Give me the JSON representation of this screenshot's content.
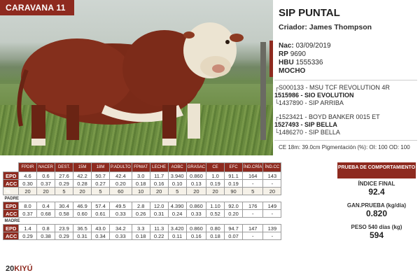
{
  "badge": "CARAVANA 11",
  "animal": {
    "name": "SIP PUNTAL",
    "breeder": "Criador: James Thompson",
    "nac_label": "Nac:",
    "nac_value": "03/09/2019",
    "rp_label": "RP",
    "rp_value": "9690",
    "hbu_label": "HBU",
    "hbu_value": "1555336",
    "type": "MOCHO"
  },
  "pedigree": {
    "sire_sire": "S000133 - MSU TCF REVOLUTION 4R",
    "sire": "1515986 - SIO EVOLUTION",
    "sire_dam": "1437890 - SIP ARRIBA",
    "dam_sire": "1523421 - BOYD BANKER 0015 ET",
    "dam": "1527493 - SIP BELLA",
    "dam_dam": "1486270 - SIP BELLA"
  },
  "ce_line": "CE 18m: 39.0cm Pigmentación (%): OI: 100 OD: 100",
  "table": {
    "headers": [
      "FPDIR",
      "NACER",
      "DEST.",
      "15M",
      "18M",
      "P.ADULTO",
      "FPMAT",
      "LECHE",
      "AOBC",
      "GRASAC",
      "CE",
      "EFC",
      "ÍND.CRÍA",
      "ÍND.CC"
    ],
    "animal": {
      "epd": [
        "4.6",
        "0.6",
        "27.6",
        "42.2",
        "50.7",
        "42.4",
        "3.0",
        "11.7",
        "3.940",
        "0.860",
        "1.0",
        "91.1",
        "164",
        "143"
      ],
      "acc": [
        "0.30",
        "0.37",
        "0.29",
        "0.28",
        "0.27",
        "0.20",
        "0.18",
        "0.16",
        "0.10",
        "0.13",
        "0.19",
        "0.19",
        "-",
        "-"
      ],
      "pct": [
        "20",
        "20",
        "5",
        "20",
        "5",
        "60",
        "10",
        "20",
        "5",
        "20",
        "20",
        "90",
        "5",
        "20"
      ]
    },
    "padre_label": "PADRE",
    "padre": {
      "epd": [
        "8.0",
        "0.4",
        "30.4",
        "46.9",
        "57.4",
        "49.5",
        "2.8",
        "12.0",
        "4.390",
        "0.860",
        "1.10",
        "92.0",
        "176",
        "149"
      ],
      "acc": [
        "0.37",
        "0.68",
        "0.58",
        "0.60",
        "0.61",
        "0.33",
        "0.26",
        "0.31",
        "0.24",
        "0.33",
        "0.52",
        "0.20",
        "-",
        "-"
      ]
    },
    "madre_label": "MADRE",
    "madre": {
      "epd": [
        "1.4",
        "0.8",
        "23.9",
        "36.5",
        "43.0",
        "34.2",
        "3.3",
        "11.3",
        "3.420",
        "0.860",
        "0.80",
        "94.7",
        "147",
        "139"
      ],
      "acc": [
        "0.29",
        "0.38",
        "0.29",
        "0.31",
        "0.34",
        "0.33",
        "0.18",
        "0.22",
        "0.11",
        "0.16",
        "0.18",
        "0.07",
        "-",
        "-"
      ]
    },
    "row_labels": {
      "epd": "EPD",
      "acc": "ACC",
      "pct": "%"
    }
  },
  "prueba": {
    "header": "PRUEBA DE COMPORTAMIENTO",
    "indice_label": "ÍNDICE FINAL",
    "indice_value": "92.4",
    "ganancia_label": "GAN.PRUEBA (kg/día)",
    "ganancia_value": "0.820",
    "peso_label": "PESO 540 días (kg)",
    "peso_value": "594"
  },
  "footer": {
    "page": "20",
    "brand": "KIYÚ"
  },
  "colors": {
    "accent": "#8e2a1f"
  }
}
